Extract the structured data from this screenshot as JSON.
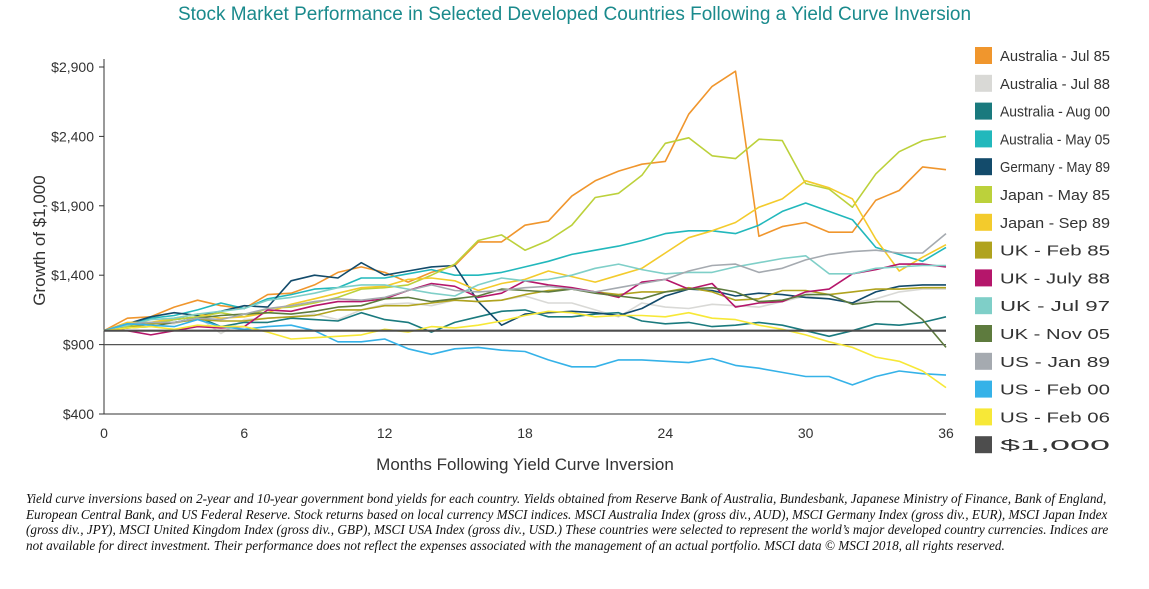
{
  "chart_data": {
    "type": "line",
    "title": "Stock Market Performance in Selected Developed Countries Following a Yield Curve Inversion",
    "xlabel": "Months Following Yield Curve Inversion",
    "ylabel": "Growth of $1,000",
    "xlim": [
      0,
      36
    ],
    "ylim": [
      400,
      2900
    ],
    "x_ticks": [
      "0",
      "6",
      "12",
      "18",
      "24",
      "30",
      "36"
    ],
    "y_ticks": [
      "$400",
      "$900",
      "$1,400",
      "$1,900",
      "$2,400",
      "$2,900"
    ],
    "grid": false,
    "legend_position": "right",
    "x": [
      0,
      1,
      2,
      3,
      4,
      5,
      6,
      7,
      8,
      9,
      10,
      11,
      12,
      13,
      14,
      15,
      16,
      17,
      18,
      19,
      20,
      21,
      22,
      23,
      24,
      25,
      26,
      27,
      28,
      29,
      30,
      31,
      32,
      33,
      34,
      35,
      36
    ],
    "series": [
      {
        "name": "Australia - Jul 85",
        "color": "#f0962d",
        "values": [
          1000,
          1090,
          1100,
          1170,
          1220,
          1180,
          1160,
          1260,
          1270,
          1330,
          1420,
          1460,
          1420,
          1350,
          1420,
          1470,
          1640,
          1640,
          1760,
          1790,
          1970,
          2080,
          2150,
          2200,
          2220,
          2560,
          2760,
          2870,
          1680,
          1750,
          1780,
          1710,
          1710,
          1940,
          2010,
          2180,
          2160
        ]
      },
      {
        "name": "Australia - Jul 88",
        "color": "#d9d9d6",
        "values": [
          1000,
          1030,
          1060,
          1050,
          1100,
          980,
          1080,
          1090,
          1100,
          1120,
          1080,
          1150,
          1190,
          1200,
          1180,
          1220,
          1210,
          1220,
          1250,
          1200,
          1200,
          1150,
          1100,
          1200,
          1170,
          1160,
          1190,
          1180,
          1170,
          1210,
          1250,
          1230,
          1200,
          1230,
          1280,
          1300,
          1300
        ]
      },
      {
        "name": "Australia - Aug 00",
        "color": "#1a7a7e",
        "values": [
          1000,
          1040,
          1050,
          1080,
          1100,
          1030,
          1060,
          1060,
          1090,
          1080,
          1070,
          1130,
          1080,
          1060,
          990,
          1060,
          1100,
          1140,
          1150,
          1100,
          1100,
          1120,
          1130,
          1070,
          1050,
          1060,
          1030,
          1040,
          1060,
          1040,
          1000,
          960,
          1000,
          1050,
          1040,
          1060,
          1100
        ]
      },
      {
        "name": "Australia - May 05",
        "color": "#22b8bc",
        "values": [
          1000,
          1040,
          1090,
          1110,
          1150,
          1200,
          1160,
          1230,
          1260,
          1300,
          1310,
          1380,
          1380,
          1410,
          1440,
          1400,
          1400,
          1420,
          1460,
          1500,
          1550,
          1580,
          1610,
          1650,
          1700,
          1720,
          1720,
          1700,
          1760,
          1860,
          1920,
          1860,
          1800,
          1600,
          1550,
          1500,
          1600
        ]
      },
      {
        "name": "Germany - May 89",
        "color": "#134b6b",
        "values": [
          1000,
          1050,
          1100,
          1130,
          1110,
          1140,
          1180,
          1170,
          1360,
          1400,
          1380,
          1490,
          1400,
          1430,
          1460,
          1470,
          1210,
          1040,
          1120,
          1130,
          1140,
          1130,
          1110,
          1160,
          1250,
          1300,
          1290,
          1250,
          1270,
          1260,
          1240,
          1230,
          1200,
          1280,
          1320,
          1330,
          1330
        ]
      },
      {
        "name": "Japan - May 85",
        "color": "#bcd13b",
        "values": [
          1000,
          1030,
          1050,
          1080,
          1100,
          1130,
          1100,
          1160,
          1170,
          1200,
          1240,
          1300,
          1310,
          1330,
          1400,
          1480,
          1650,
          1690,
          1580,
          1650,
          1760,
          1960,
          1990,
          2120,
          2350,
          2390,
          2260,
          2240,
          2380,
          2370,
          2060,
          2020,
          1890,
          2130,
          2290,
          2370,
          2400
        ]
      },
      {
        "name": "Japan - Sep 89",
        "color": "#f3cb2c",
        "values": [
          1000,
          1060,
          1060,
          1090,
          1120,
          1090,
          1100,
          1130,
          1190,
          1230,
          1270,
          1310,
          1320,
          1370,
          1380,
          1360,
          1290,
          1340,
          1370,
          1430,
          1390,
          1350,
          1400,
          1450,
          1560,
          1670,
          1720,
          1780,
          1890,
          1950,
          2080,
          2030,
          1950,
          1660,
          1430,
          1530,
          1620
        ]
      },
      {
        "name": "UK - Feb 85",
        "color": "#b0a31e",
        "values": [
          1000,
          1020,
          1050,
          1060,
          1080,
          1070,
          1070,
          1090,
          1100,
          1110,
          1150,
          1150,
          1180,
          1180,
          1200,
          1220,
          1210,
          1220,
          1260,
          1290,
          1300,
          1280,
          1260,
          1280,
          1280,
          1310,
          1280,
          1220,
          1230,
          1290,
          1290,
          1260,
          1280,
          1300,
          1300,
          1310,
          1310
        ]
      },
      {
        "name": "UK - July 88",
        "color": "#b5166b",
        "values": [
          1000,
          1000,
          970,
          1000,
          1030,
          1020,
          1030,
          1150,
          1140,
          1180,
          1210,
          1210,
          1230,
          1290,
          1340,
          1320,
          1240,
          1270,
          1360,
          1330,
          1310,
          1280,
          1240,
          1350,
          1370,
          1300,
          1340,
          1170,
          1200,
          1210,
          1280,
          1300,
          1410,
          1440,
          1480,
          1480,
          1460
        ]
      },
      {
        "name": "UK - Jul 97",
        "color": "#7fcfc8",
        "values": [
          1000,
          1040,
          1080,
          1090,
          1120,
          1140,
          1160,
          1220,
          1240,
          1270,
          1310,
          1330,
          1330,
          1300,
          1270,
          1250,
          1330,
          1380,
          1360,
          1370,
          1400,
          1450,
          1480,
          1440,
          1410,
          1420,
          1420,
          1460,
          1490,
          1520,
          1540,
          1410,
          1410,
          1450,
          1460,
          1470,
          1470
        ]
      },
      {
        "name": "UK - Nov 05",
        "color": "#5e7b3e",
        "values": [
          1000,
          1020,
          1030,
          1060,
          1090,
          1110,
          1120,
          1130,
          1120,
          1140,
          1170,
          1180,
          1230,
          1240,
          1210,
          1230,
          1250,
          1300,
          1290,
          1280,
          1300,
          1270,
          1250,
          1230,
          1280,
          1300,
          1310,
          1280,
          1210,
          1220,
          1260,
          1260,
          1190,
          1210,
          1210,
          1080,
          880
        ]
      },
      {
        "name": "US - Jan 89",
        "color": "#a5aab0",
        "values": [
          1000,
          1050,
          1060,
          1060,
          1090,
          1080,
          1120,
          1160,
          1180,
          1210,
          1230,
          1220,
          1240,
          1290,
          1330,
          1290,
          1280,
          1290,
          1310,
          1320,
          1300,
          1280,
          1310,
          1340,
          1370,
          1430,
          1470,
          1480,
          1420,
          1450,
          1510,
          1550,
          1570,
          1580,
          1560,
          1560,
          1700
        ]
      },
      {
        "name": "US - Feb 00",
        "color": "#35b2e8",
        "values": [
          1000,
          1050,
          1040,
          1030,
          1080,
          1030,
          1010,
          1030,
          1040,
          1000,
          920,
          920,
          940,
          870,
          830,
          870,
          880,
          860,
          850,
          790,
          740,
          740,
          790,
          790,
          780,
          770,
          800,
          750,
          730,
          700,
          670,
          670,
          610,
          670,
          710,
          690,
          680
        ]
      },
      {
        "name": "US - Feb 06",
        "color": "#f7e837",
        "values": [
          1000,
          1020,
          1030,
          1010,
          1040,
          1030,
          1030,
          990,
          940,
          950,
          960,
          970,
          1010,
          990,
          1030,
          1020,
          1040,
          1070,
          1110,
          1140,
          1130,
          1100,
          1110,
          1110,
          1100,
          1130,
          1090,
          1080,
          1040,
          1010,
          970,
          920,
          880,
          810,
          780,
          710,
          590
        ]
      },
      {
        "name": "$1,000",
        "color": "#4d4d4d",
        "values": [
          1000,
          1000,
          1000,
          1000,
          1000,
          1000,
          1000,
          1000,
          1000,
          1000,
          1000,
          1000,
          1000,
          1000,
          1000,
          1000,
          1000,
          1000,
          1000,
          1000,
          1000,
          1000,
          1000,
          1000,
          1000,
          1000,
          1000,
          1000,
          1000,
          1000,
          1000,
          1000,
          1000,
          1000,
          1000,
          1000,
          1000
        ]
      }
    ]
  },
  "footnote": "Yield curve inversions based on 2-year and 10-year government bond yields for each country. Yields obtained from Reserve Bank of Australia, Bundesbank, Japanese Ministry of Finance, Bank of England, European Central Bank, and US Federal Reserve. Stock returns based on local currency MSCI indices. MSCI Australia Index (gross div., AUD), MSCI Germany Index (gross div., EUR), MSCI Japan Index (gross div., JPY), MSCI United Kingdom Index (gross div., GBP), MSCI USA Index (gross div., USD.) These countries were selected to represent the world’s major developed country currencies. Indices are not available for direct investment. Their performance does not reflect the expenses associated with the management of an actual portfolio. MSCI data © MSCI 2018, all rights reserved."
}
